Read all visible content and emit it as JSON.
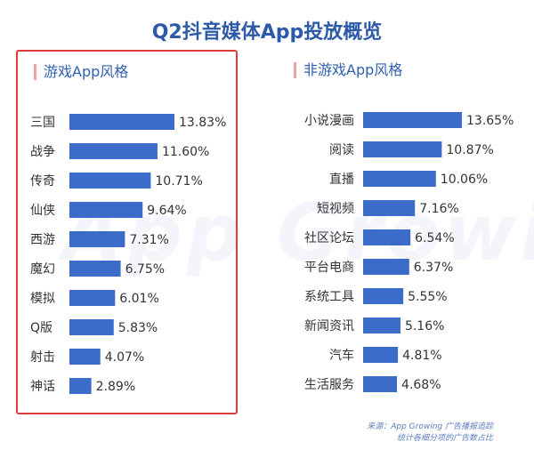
{
  "title": "Q2抖音媒体App投放概览",
  "watermark": "App Growing",
  "source": {
    "line1": "来源：App Growing 广告播报追踪",
    "line2": "统计各细分项的广告数占比"
  },
  "colors": {
    "bar": "#3c6cc9",
    "title": "#2c5aa8",
    "highlight_border": "#e23b3b"
  },
  "chart_data": [
    {
      "type": "bar",
      "orientation": "horizontal",
      "title": "游戏App风格",
      "categories": [
        "三国",
        "战争",
        "传奇",
        "仙侠",
        "西游",
        "魔幻",
        "模拟",
        "Q版",
        "射击",
        "神话"
      ],
      "values": [
        13.83,
        11.6,
        10.71,
        9.64,
        7.31,
        6.75,
        6.01,
        5.83,
        4.07,
        2.89
      ],
      "labels": [
        "13.83%",
        "11.60%",
        "10.71%",
        "9.64%",
        "7.31%",
        "6.75%",
        "6.01%",
        "5.83%",
        "4.07%",
        "2.89%"
      ],
      "unit": "%",
      "xlim": [
        0,
        13.83
      ],
      "grid": false,
      "highlighted": true
    },
    {
      "type": "bar",
      "orientation": "horizontal",
      "title": "非游戏App风格",
      "categories": [
        "小说漫画",
        "阅读",
        "直播",
        "短视频",
        "社区论坛",
        "平台电商",
        "系统工具",
        "新闻资讯",
        "汽车",
        "生活服务"
      ],
      "values": [
        13.65,
        10.87,
        10.06,
        7.16,
        6.54,
        6.37,
        5.55,
        5.16,
        4.81,
        4.68
      ],
      "labels": [
        "13.65%",
        "10.87%",
        "10.06%",
        "7.16%",
        "6.54%",
        "6.37%",
        "5.55%",
        "5.16%",
        "4.81%",
        "4.68%"
      ],
      "unit": "%",
      "xlim": [
        0,
        13.65
      ],
      "grid": false,
      "highlighted": false
    }
  ]
}
